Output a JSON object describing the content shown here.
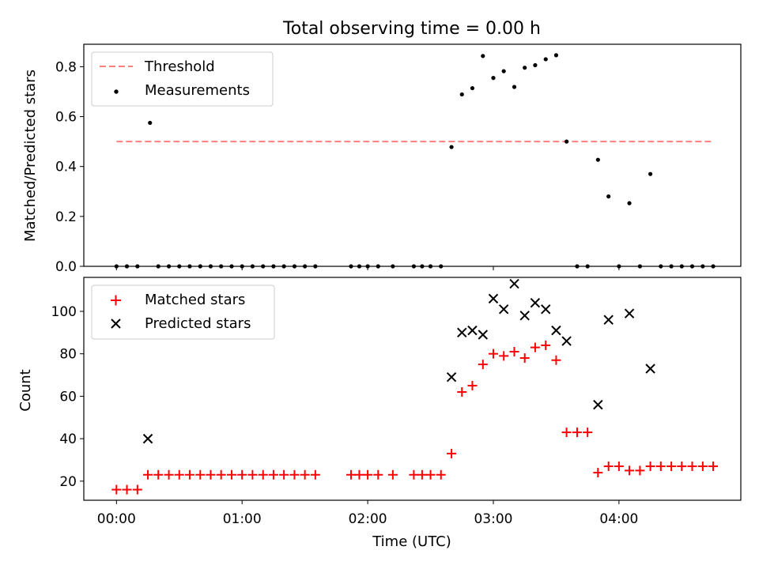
{
  "figure": {
    "title": "Total observing time = 0.00 h"
  },
  "chart_data": [
    {
      "type": "scatter",
      "ylabel": "Matched/Predicted stars",
      "xlabel": "",
      "ylim": [
        0,
        0.89
      ],
      "xlim": [
        -0.26,
        4.97
      ],
      "yticks": [
        0.0,
        0.2,
        0.4,
        0.6,
        0.8
      ],
      "ytick_labels": [
        "0.0",
        "0.2",
        "0.4",
        "0.6",
        "0.8"
      ],
      "legend": {
        "placement": "top-left",
        "entries": [
          {
            "label": "Threshold",
            "color": "#ff7f7f",
            "marker": "dashed-line"
          },
          {
            "label": "Measurements",
            "color": "#000000",
            "marker": "dot"
          }
        ]
      },
      "threshold": {
        "name": "Threshold",
        "y": 0.5,
        "x_range": [
          0.0,
          4.75
        ],
        "color": "#ff7f7f",
        "style": "dashed"
      },
      "series": [
        {
          "name": "Measurements",
          "color": "#000000",
          "marker": "dot",
          "x": [
            0.0,
            0.083,
            0.167,
            0.267,
            0.333,
            0.417,
            0.5,
            0.583,
            0.667,
            0.75,
            0.833,
            0.917,
            1.0,
            1.083,
            1.167,
            1.25,
            1.333,
            1.417,
            1.5,
            1.583,
            1.867,
            1.933,
            2.0,
            2.083,
            2.2,
            2.367,
            2.433,
            2.5,
            2.583,
            2.667,
            2.75,
            2.833,
            2.917,
            3.0,
            3.083,
            3.167,
            3.25,
            3.333,
            3.417,
            3.5,
            3.583,
            3.667,
            3.75,
            3.833,
            3.917,
            4.0,
            4.083,
            4.167,
            4.25,
            4.333,
            4.417,
            4.5,
            4.583,
            4.667,
            4.75
          ],
          "y": [
            0,
            0,
            0,
            0.575,
            0,
            0,
            0,
            0,
            0,
            0,
            0,
            0,
            0,
            0,
            0,
            0,
            0,
            0,
            0,
            0,
            0,
            0,
            0,
            0,
            0,
            0,
            0,
            0,
            0,
            0.478,
            0.689,
            0.714,
            0.843,
            0.755,
            0.782,
            0.719,
            0.796,
            0.806,
            0.83,
            0.846,
            0.5,
            0,
            0,
            0.427,
            0.28,
            0,
            0.253,
            0,
            0.37,
            0,
            0,
            0,
            0,
            0,
            0
          ]
        }
      ]
    },
    {
      "type": "scatter",
      "ylabel": "Count",
      "xlabel": "Time (UTC)",
      "ylim": [
        11,
        116
      ],
      "xlim": [
        -0.26,
        4.97
      ],
      "yticks": [
        20,
        40,
        60,
        80,
        100
      ],
      "ytick_labels": [
        "20",
        "40",
        "60",
        "80",
        "100"
      ],
      "xticks": [
        0,
        1,
        2,
        3,
        4
      ],
      "xtick_labels": [
        "00:00",
        "01:00",
        "02:00",
        "03:00",
        "04:00"
      ],
      "legend": {
        "placement": "top-left",
        "entries": [
          {
            "label": "Matched stars",
            "color": "#ff0000",
            "marker": "plus"
          },
          {
            "label": "Predicted stars",
            "color": "#000000",
            "marker": "x"
          }
        ]
      },
      "series": [
        {
          "name": "Matched stars",
          "color": "#ff0000",
          "marker": "plus",
          "x": [
            0.0,
            0.083,
            0.167,
            0.25,
            0.333,
            0.417,
            0.5,
            0.583,
            0.667,
            0.75,
            0.833,
            0.917,
            1.0,
            1.083,
            1.167,
            1.25,
            1.333,
            1.417,
            1.5,
            1.583,
            1.867,
            1.933,
            2.0,
            2.083,
            2.2,
            2.367,
            2.433,
            2.5,
            2.583,
            2.667,
            2.75,
            2.833,
            2.917,
            3.0,
            3.083,
            3.167,
            3.25,
            3.333,
            3.417,
            3.5,
            3.583,
            3.667,
            3.75,
            3.833,
            3.917,
            4.0,
            4.083,
            4.167,
            4.25,
            4.333,
            4.417,
            4.5,
            4.583,
            4.667,
            4.75
          ],
          "y": [
            16,
            16,
            16,
            23,
            23,
            23,
            23,
            23,
            23,
            23,
            23,
            23,
            23,
            23,
            23,
            23,
            23,
            23,
            23,
            23,
            23,
            23,
            23,
            23,
            23,
            23,
            23,
            23,
            23,
            33,
            62,
            65,
            75,
            80,
            79,
            81,
            78,
            83,
            84,
            77,
            43,
            43,
            43,
            24,
            27,
            27,
            25,
            25,
            27,
            27,
            27,
            27,
            27,
            27,
            27
          ]
        },
        {
          "name": "Predicted stars",
          "color": "#000000",
          "marker": "x",
          "x": [
            0.25,
            2.667,
            2.75,
            2.833,
            2.917,
            3.0,
            3.083,
            3.167,
            3.25,
            3.333,
            3.417,
            3.5,
            3.583,
            3.833,
            3.917,
            4.083,
            4.25
          ],
          "y": [
            40,
            69,
            90,
            91,
            89,
            106,
            101,
            113,
            98,
            104,
            101,
            91,
            86,
            56,
            96,
            99,
            73
          ]
        }
      ]
    }
  ]
}
